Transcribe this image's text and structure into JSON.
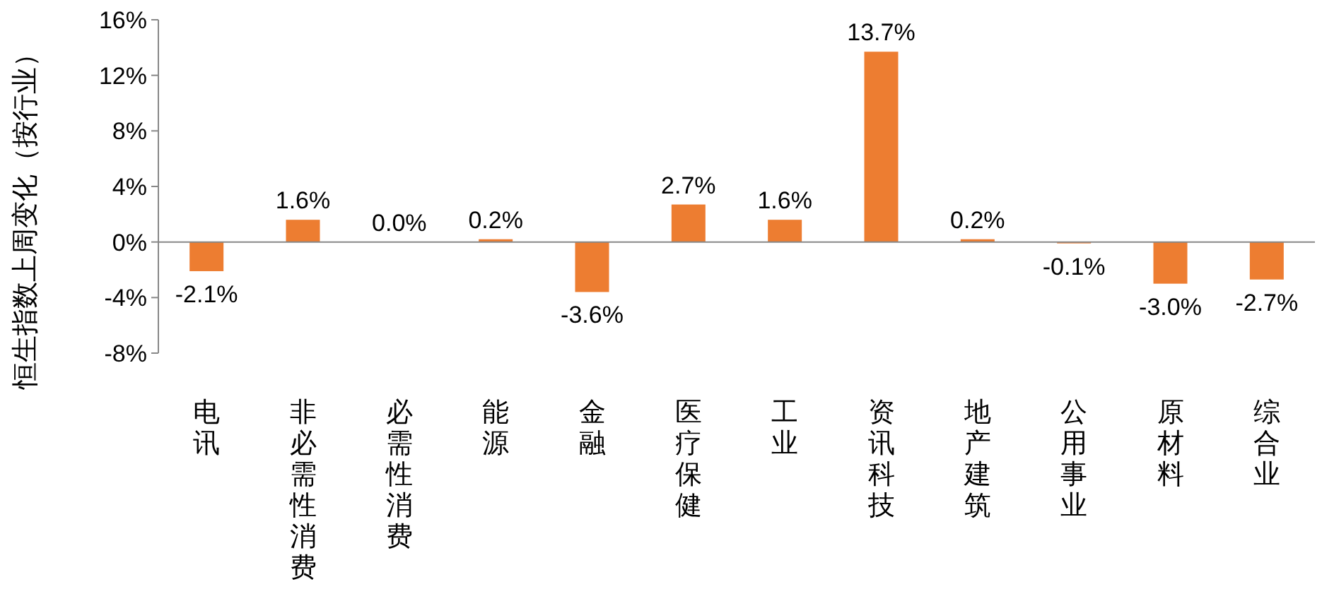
{
  "chart_data": {
    "type": "bar",
    "ylabel": "恒生指数上周变化（按行业）",
    "categories": [
      "电讯",
      "非必需性消费",
      "必需性消费",
      "能源",
      "金融",
      "医疗保健",
      "工业",
      "资讯科技",
      "地产建筑",
      "公用事业",
      "原材料",
      "综合业"
    ],
    "values": [
      -2.1,
      1.6,
      0.0,
      0.2,
      -3.6,
      2.7,
      1.6,
      13.7,
      0.2,
      -0.1,
      -3.0,
      -2.7
    ],
    "value_labels": [
      "-2.1%",
      "1.6%",
      "0.0%",
      "0.2%",
      "-3.6%",
      "2.7%",
      "1.6%",
      "13.7%",
      "0.2%",
      "-0.1%",
      "-3.0%",
      "-2.7%"
    ],
    "color": "#ed7d31",
    "ylim": [
      -8,
      16
    ],
    "yticks": [
      {
        "value": -8,
        "label": "-8%"
      },
      {
        "value": -4,
        "label": "-4%"
      },
      {
        "value": 0,
        "label": "0%"
      },
      {
        "value": 4,
        "label": "4%"
      },
      {
        "value": 8,
        "label": "8%"
      },
      {
        "value": 12,
        "label": "12%"
      },
      {
        "value": 16,
        "label": "16%"
      }
    ],
    "data_labels": false
  }
}
